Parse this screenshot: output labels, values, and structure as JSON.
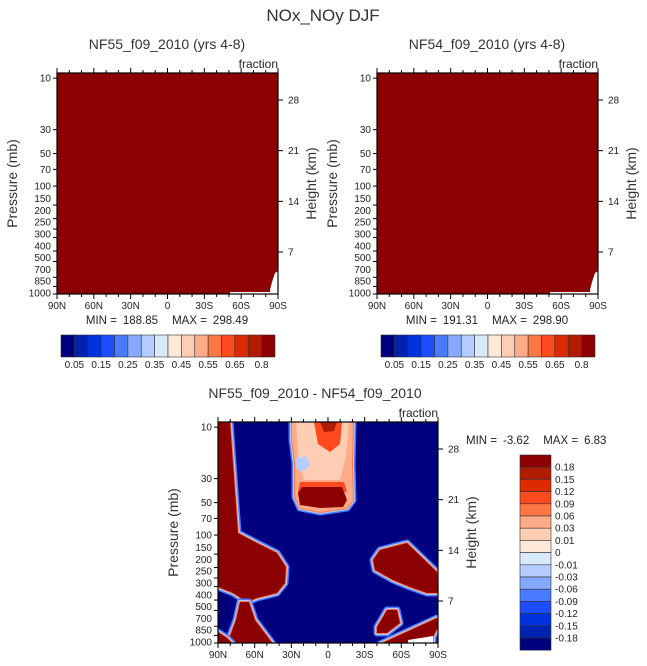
{
  "figure_title": "NOx_NOy DJF",
  "colors": {
    "scale": [
      "#00007f",
      "#0022b0",
      "#0033dd",
      "#1e4cff",
      "#4a7bff",
      "#86a8ff",
      "#b4ccff",
      "#d8e8ff",
      "#ffe8d8",
      "#ffccb4",
      "#ffaa88",
      "#ff7744",
      "#ff4a1e",
      "#dd2a00",
      "#b01c00",
      "#8b0000"
    ],
    "missing": "#ffffff"
  },
  "chart_data": [
    {
      "type": "heatmap",
      "title": "NF55_f09_2010 (yrs 4-8)",
      "units": "fraction",
      "xlabel": "",
      "ylabel": "Pressure (mb)",
      "y2label": "Height (km)",
      "x_ticks": [
        "90N",
        "60N",
        "30N",
        "0",
        "30S",
        "60S",
        "90S"
      ],
      "y_ticks": [
        10,
        30,
        50,
        70,
        100,
        150,
        200,
        250,
        300,
        400,
        500,
        700,
        850,
        1000
      ],
      "y2_ticks": [
        28,
        21,
        14,
        7
      ],
      "min_label": "MIN =",
      "min": "188.85",
      "max_label": "MAX =",
      "max": "298.49",
      "colorbar_labels": [
        "0.05",
        "0.15",
        "0.25",
        "0.35",
        "0.45",
        "0.55",
        "0.65",
        "0.8"
      ],
      "field_summary": "entire domain above top level (0.8+), missing values near surface at 60S-90S"
    },
    {
      "type": "heatmap",
      "title": "NF54_f09_2010 (yrs 4-8)",
      "units": "fraction",
      "xlabel": "",
      "ylabel": "Pressure (mb)",
      "y2label": "Height (km)",
      "x_ticks": [
        "90N",
        "60N",
        "30N",
        "0",
        "30S",
        "60S",
        "90S"
      ],
      "y_ticks": [
        10,
        30,
        50,
        70,
        100,
        150,
        200,
        250,
        300,
        400,
        500,
        700,
        850,
        1000
      ],
      "y2_ticks": [
        28,
        21,
        14,
        7
      ],
      "min_label": "MIN =",
      "min": "191.31",
      "max_label": "MAX =",
      "max": "298.90",
      "colorbar_labels": [
        "0.05",
        "0.15",
        "0.25",
        "0.35",
        "0.45",
        "0.55",
        "0.65",
        "0.8"
      ],
      "field_summary": "entire domain above top level (0.8+), missing values near surface at 60S-90S"
    },
    {
      "type": "heatmap",
      "title": "NF55_f09_2010 - NF54_f09_2010",
      "units": "fraction",
      "xlabel": "",
      "ylabel": "Pressure (mb)",
      "y2label": "Height (km)",
      "x_ticks": [
        "90N",
        "60N",
        "30N",
        "0",
        "30S",
        "60S",
        "90S"
      ],
      "y_ticks": [
        10,
        30,
        50,
        70,
        100,
        150,
        200,
        250,
        300,
        400,
        500,
        700,
        850,
        1000
      ],
      "y2_ticks": [
        28,
        21,
        14,
        7
      ],
      "min_label": "MIN =",
      "min": "-3.62",
      "max_label": "MAX =",
      "max": "6.83",
      "colorbar_labels": [
        "0.18",
        "0.15",
        "0.12",
        "0.09",
        "0.06",
        "0.03",
        "0.01",
        "0",
        "-0.01",
        "-0.03",
        "-0.06",
        "-0.09",
        "-0.12",
        "-0.15",
        "-0.18"
      ],
      "field_summary": "mostly below -0.18; positive regions at high northern latitudes, tropical stratosphere 10-60 mb, and southern mid/high latitudes in the troposphere"
    }
  ]
}
